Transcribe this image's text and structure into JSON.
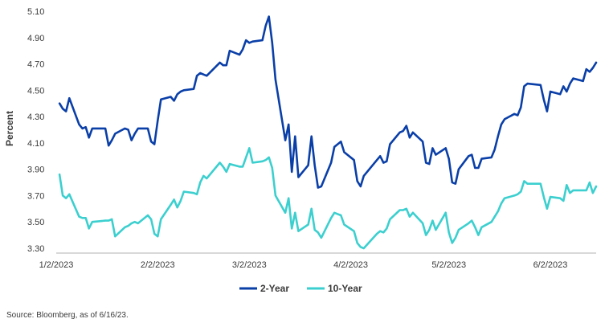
{
  "chart_data": {
    "type": "line",
    "ylabel": "Percent",
    "xlabel": "",
    "ylim": [
      3.3,
      5.1
    ],
    "yticks": [
      "5.10",
      "4.90",
      "4.70",
      "4.50",
      "4.30",
      "4.10",
      "3.90",
      "3.70",
      "3.50",
      "3.30"
    ],
    "ytick_values": [
      5.1,
      4.9,
      4.7,
      4.5,
      4.3,
      4.1,
      3.9,
      3.7,
      3.5,
      3.3
    ],
    "xlim": [
      "2023-01-02",
      "2023-06-16"
    ],
    "xticks": [
      "1/2/2023",
      "2/2/2023",
      "3/2/2023",
      "4/2/2023",
      "5/2/2023",
      "6/2/2023"
    ],
    "xtick_dates": [
      "2023-01-02",
      "2023-02-02",
      "2023-03-02",
      "2023-04-02",
      "2023-05-02",
      "2023-06-02"
    ],
    "grid": false,
    "legend": "bottom-center",
    "series": [
      {
        "name": "2-Year",
        "color": "#0a3fa8",
        "x": [
          "2023-01-03",
          "2023-01-04",
          "2023-01-05",
          "2023-01-06",
          "2023-01-09",
          "2023-01-10",
          "2023-01-11",
          "2023-01-12",
          "2023-01-13",
          "2023-01-17",
          "2023-01-18",
          "2023-01-19",
          "2023-01-20",
          "2023-01-23",
          "2023-01-24",
          "2023-01-25",
          "2023-01-26",
          "2023-01-27",
          "2023-01-30",
          "2023-01-31",
          "2023-02-01",
          "2023-02-02",
          "2023-02-03",
          "2023-02-06",
          "2023-02-07",
          "2023-02-08",
          "2023-02-09",
          "2023-02-10",
          "2023-02-13",
          "2023-02-14",
          "2023-02-15",
          "2023-02-16",
          "2023-02-17",
          "2023-02-21",
          "2023-02-22",
          "2023-02-23",
          "2023-02-24",
          "2023-02-27",
          "2023-02-28",
          "2023-03-01",
          "2023-03-02",
          "2023-03-03",
          "2023-03-06",
          "2023-03-07",
          "2023-03-08",
          "2023-03-09",
          "2023-03-10",
          "2023-03-13",
          "2023-03-14",
          "2023-03-15",
          "2023-03-16",
          "2023-03-17",
          "2023-03-20",
          "2023-03-21",
          "2023-03-22",
          "2023-03-23",
          "2023-03-24",
          "2023-03-27",
          "2023-03-28",
          "2023-03-29",
          "2023-03-30",
          "2023-03-31",
          "2023-04-03",
          "2023-04-04",
          "2023-04-05",
          "2023-04-06",
          "2023-04-10",
          "2023-04-11",
          "2023-04-12",
          "2023-04-13",
          "2023-04-14",
          "2023-04-17",
          "2023-04-18",
          "2023-04-19",
          "2023-04-20",
          "2023-04-21",
          "2023-04-24",
          "2023-04-25",
          "2023-04-26",
          "2023-04-27",
          "2023-04-28",
          "2023-05-01",
          "2023-05-02",
          "2023-05-03",
          "2023-05-04",
          "2023-05-05",
          "2023-05-08",
          "2023-05-09",
          "2023-05-10",
          "2023-05-11",
          "2023-05-12",
          "2023-05-15",
          "2023-05-16",
          "2023-05-17",
          "2023-05-18",
          "2023-05-19",
          "2023-05-22",
          "2023-05-23",
          "2023-05-24",
          "2023-05-25",
          "2023-05-26",
          "2023-05-30",
          "2023-05-31",
          "2023-06-01",
          "2023-06-02",
          "2023-06-05",
          "2023-06-06",
          "2023-06-07",
          "2023-06-08",
          "2023-06-09",
          "2023-06-12",
          "2023-06-13",
          "2023-06-14",
          "2023-06-15",
          "2023-06-16"
        ],
        "y": [
          4.4,
          4.36,
          4.34,
          4.44,
          4.24,
          4.21,
          4.22,
          4.14,
          4.21,
          4.21,
          4.08,
          4.12,
          4.17,
          4.21,
          4.2,
          4.12,
          4.17,
          4.21,
          4.21,
          4.11,
          4.09,
          4.27,
          4.43,
          4.45,
          4.42,
          4.47,
          4.49,
          4.5,
          4.51,
          4.61,
          4.63,
          4.62,
          4.61,
          4.71,
          4.69,
          4.69,
          4.8,
          4.77,
          4.81,
          4.88,
          4.86,
          4.87,
          4.88,
          4.99,
          5.06,
          4.86,
          4.58,
          4.12,
          4.24,
          3.88,
          4.15,
          3.84,
          3.93,
          4.15,
          3.93,
          3.76,
          3.77,
          3.95,
          4.07,
          4.09,
          4.11,
          4.03,
          3.97,
          3.81,
          3.77,
          3.85,
          3.97,
          4.0,
          3.95,
          3.96,
          4.09,
          4.18,
          4.19,
          4.23,
          4.14,
          4.18,
          4.11,
          3.95,
          3.94,
          4.06,
          4.01,
          4.06,
          3.98,
          3.8,
          3.79,
          3.9,
          4.0,
          4.01,
          3.91,
          3.91,
          3.98,
          3.99,
          4.05,
          4.15,
          4.24,
          4.28,
          4.32,
          4.31,
          4.37,
          4.53,
          4.55,
          4.54,
          4.43,
          4.34,
          4.49,
          4.47,
          4.53,
          4.49,
          4.55,
          4.59,
          4.57,
          4.66,
          4.64,
          4.67,
          4.71
        ]
      },
      {
        "name": "10-Year",
        "color": "#3ccfcf",
        "x": [
          "2023-01-03",
          "2023-01-04",
          "2023-01-05",
          "2023-01-06",
          "2023-01-09",
          "2023-01-10",
          "2023-01-11",
          "2023-01-12",
          "2023-01-13",
          "2023-01-17",
          "2023-01-18",
          "2023-01-19",
          "2023-01-20",
          "2023-01-23",
          "2023-01-24",
          "2023-01-25",
          "2023-01-26",
          "2023-01-27",
          "2023-01-30",
          "2023-01-31",
          "2023-02-01",
          "2023-02-02",
          "2023-02-03",
          "2023-02-06",
          "2023-02-07",
          "2023-02-08",
          "2023-02-09",
          "2023-02-10",
          "2023-02-13",
          "2023-02-14",
          "2023-02-15",
          "2023-02-16",
          "2023-02-17",
          "2023-02-21",
          "2023-02-22",
          "2023-02-23",
          "2023-02-24",
          "2023-02-27",
          "2023-02-28",
          "2023-03-01",
          "2023-03-02",
          "2023-03-03",
          "2023-03-06",
          "2023-03-07",
          "2023-03-08",
          "2023-03-09",
          "2023-03-10",
          "2023-03-13",
          "2023-03-14",
          "2023-03-15",
          "2023-03-16",
          "2023-03-17",
          "2023-03-20",
          "2023-03-21",
          "2023-03-22",
          "2023-03-23",
          "2023-03-24",
          "2023-03-27",
          "2023-03-28",
          "2023-03-29",
          "2023-03-30",
          "2023-03-31",
          "2023-04-03",
          "2023-04-04",
          "2023-04-05",
          "2023-04-06",
          "2023-04-10",
          "2023-04-11",
          "2023-04-12",
          "2023-04-13",
          "2023-04-14",
          "2023-04-17",
          "2023-04-18",
          "2023-04-19",
          "2023-04-20",
          "2023-04-21",
          "2023-04-24",
          "2023-04-25",
          "2023-04-26",
          "2023-04-27",
          "2023-04-28",
          "2023-05-01",
          "2023-05-02",
          "2023-05-03",
          "2023-05-04",
          "2023-05-05",
          "2023-05-08",
          "2023-05-09",
          "2023-05-10",
          "2023-05-11",
          "2023-05-12",
          "2023-05-15",
          "2023-05-16",
          "2023-05-17",
          "2023-05-18",
          "2023-05-19",
          "2023-05-22",
          "2023-05-23",
          "2023-05-24",
          "2023-05-25",
          "2023-05-26",
          "2023-05-30",
          "2023-05-31",
          "2023-06-01",
          "2023-06-02",
          "2023-06-05",
          "2023-06-06",
          "2023-06-07",
          "2023-06-08",
          "2023-06-09",
          "2023-06-12",
          "2023-06-13",
          "2023-06-14",
          "2023-06-15",
          "2023-06-16"
        ],
        "y": [
          3.86,
          3.7,
          3.68,
          3.71,
          3.54,
          3.53,
          3.53,
          3.45,
          3.5,
          3.51,
          3.51,
          3.52,
          3.39,
          3.46,
          3.47,
          3.49,
          3.5,
          3.49,
          3.55,
          3.52,
          3.41,
          3.39,
          3.52,
          3.63,
          3.67,
          3.61,
          3.66,
          3.73,
          3.72,
          3.71,
          3.8,
          3.85,
          3.83,
          3.95,
          3.92,
          3.88,
          3.94,
          3.92,
          3.92,
          3.99,
          4.06,
          3.95,
          3.96,
          3.97,
          3.99,
          3.91,
          3.7,
          3.57,
          3.68,
          3.45,
          3.57,
          3.43,
          3.48,
          3.6,
          3.44,
          3.42,
          3.38,
          3.53,
          3.57,
          3.56,
          3.55,
          3.48,
          3.43,
          3.34,
          3.31,
          3.3,
          3.41,
          3.43,
          3.42,
          3.45,
          3.52,
          3.59,
          3.59,
          3.6,
          3.54,
          3.57,
          3.49,
          3.4,
          3.44,
          3.51,
          3.44,
          3.57,
          3.42,
          3.34,
          3.38,
          3.44,
          3.49,
          3.51,
          3.46,
          3.4,
          3.46,
          3.5,
          3.54,
          3.58,
          3.64,
          3.68,
          3.7,
          3.71,
          3.73,
          3.81,
          3.79,
          3.79,
          3.69,
          3.6,
          3.69,
          3.68,
          3.66,
          3.78,
          3.72,
          3.74,
          3.74,
          3.74,
          3.8,
          3.72,
          3.77
        ]
      }
    ]
  },
  "source": "Source: Bloomberg, as of 6/16/23."
}
